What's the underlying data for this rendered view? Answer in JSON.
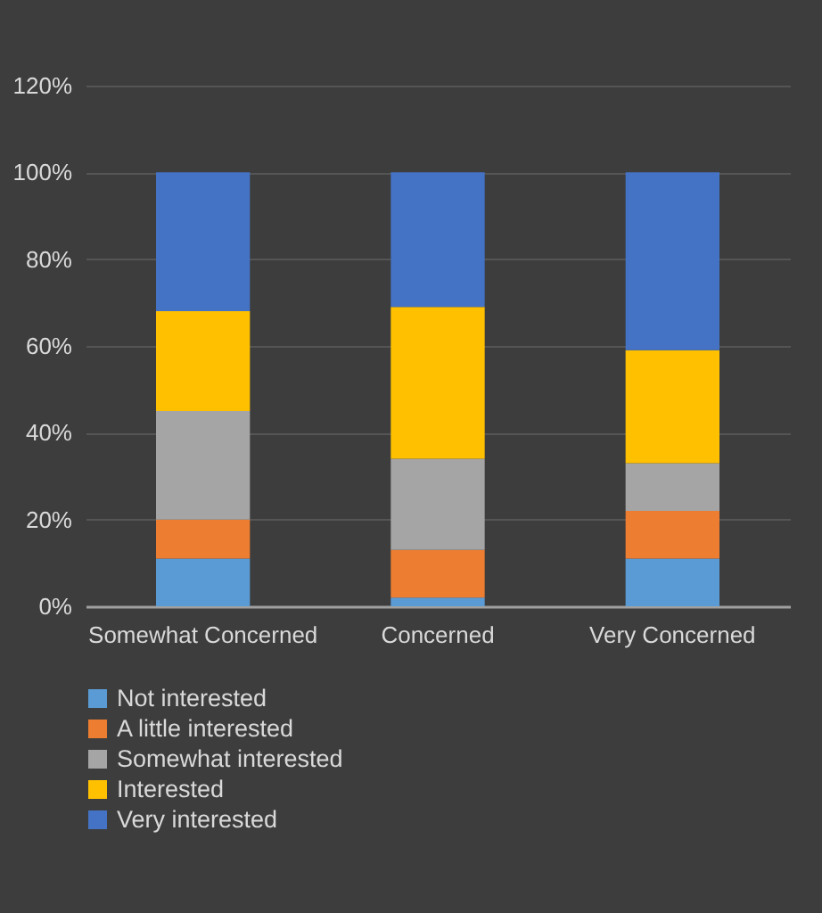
{
  "chart_data": {
    "type": "bar",
    "stacked": true,
    "categories": [
      "Somewhat Concerned",
      "Concerned",
      "Very Concerned"
    ],
    "series": [
      {
        "name": "Not interested",
        "color": "#5b9bd5",
        "values": [
          11,
          2,
          11
        ]
      },
      {
        "name": "A little interested",
        "color": "#ed7d31",
        "values": [
          9,
          11,
          11
        ]
      },
      {
        "name": "Somewhat interested",
        "color": "#a5a5a5",
        "values": [
          25,
          21,
          11
        ]
      },
      {
        "name": "Interested",
        "color": "#ffc000",
        "values": [
          23,
          35,
          26
        ]
      },
      {
        "name": "Very interested",
        "color": "#4472c4",
        "values": [
          32,
          31,
          41
        ]
      }
    ],
    "ylim": [
      0,
      120
    ],
    "yticks": [
      {
        "value": 0,
        "label": "0%"
      },
      {
        "value": 20,
        "label": "20%"
      },
      {
        "value": 40,
        "label": "40%"
      },
      {
        "value": 60,
        "label": "60%"
      },
      {
        "value": 80,
        "label": "80%"
      },
      {
        "value": 100,
        "label": "100%"
      },
      {
        "value": 120,
        "label": "120%"
      }
    ],
    "grid": "y",
    "legend": "bottom"
  }
}
